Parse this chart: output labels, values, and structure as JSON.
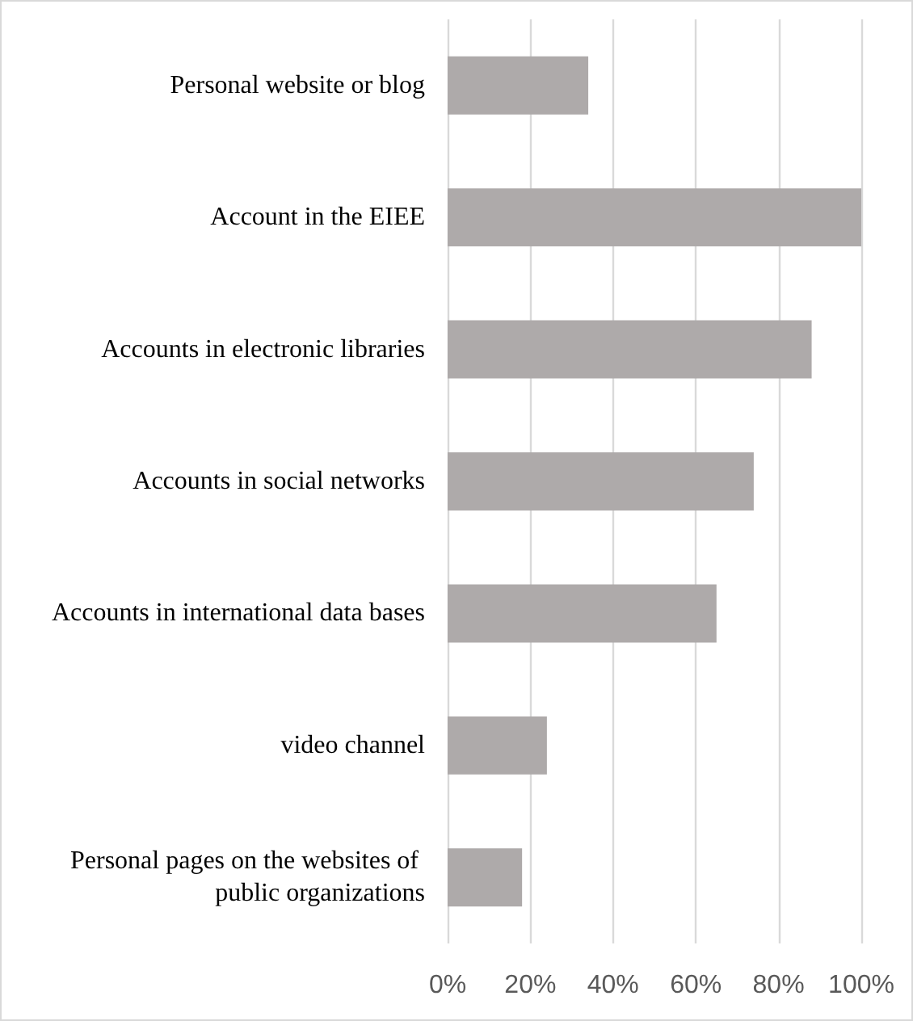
{
  "chart_data": {
    "type": "bar",
    "orientation": "horizontal",
    "categories": [
      "Personal website or blog",
      "Account in the EIEE",
      "Accounts in electronic libraries",
      "Accounts in social networks",
      "Accounts in international data bases",
      "video channel",
      "Personal pages on the websites of public organizations"
    ],
    "values": [
      34,
      100,
      88,
      74,
      65,
      24,
      18
    ],
    "color": "#aeaaaa",
    "xlim": [
      0,
      100
    ],
    "xticks": [
      {
        "value": 0,
        "label": "0%"
      },
      {
        "value": 20,
        "label": "20%"
      },
      {
        "value": 40,
        "label": "40%"
      },
      {
        "value": 60,
        "label": "60%"
      },
      {
        "value": 80,
        "label": "80%"
      },
      {
        "value": 100,
        "label": "100%"
      }
    ],
    "grid": "x"
  }
}
